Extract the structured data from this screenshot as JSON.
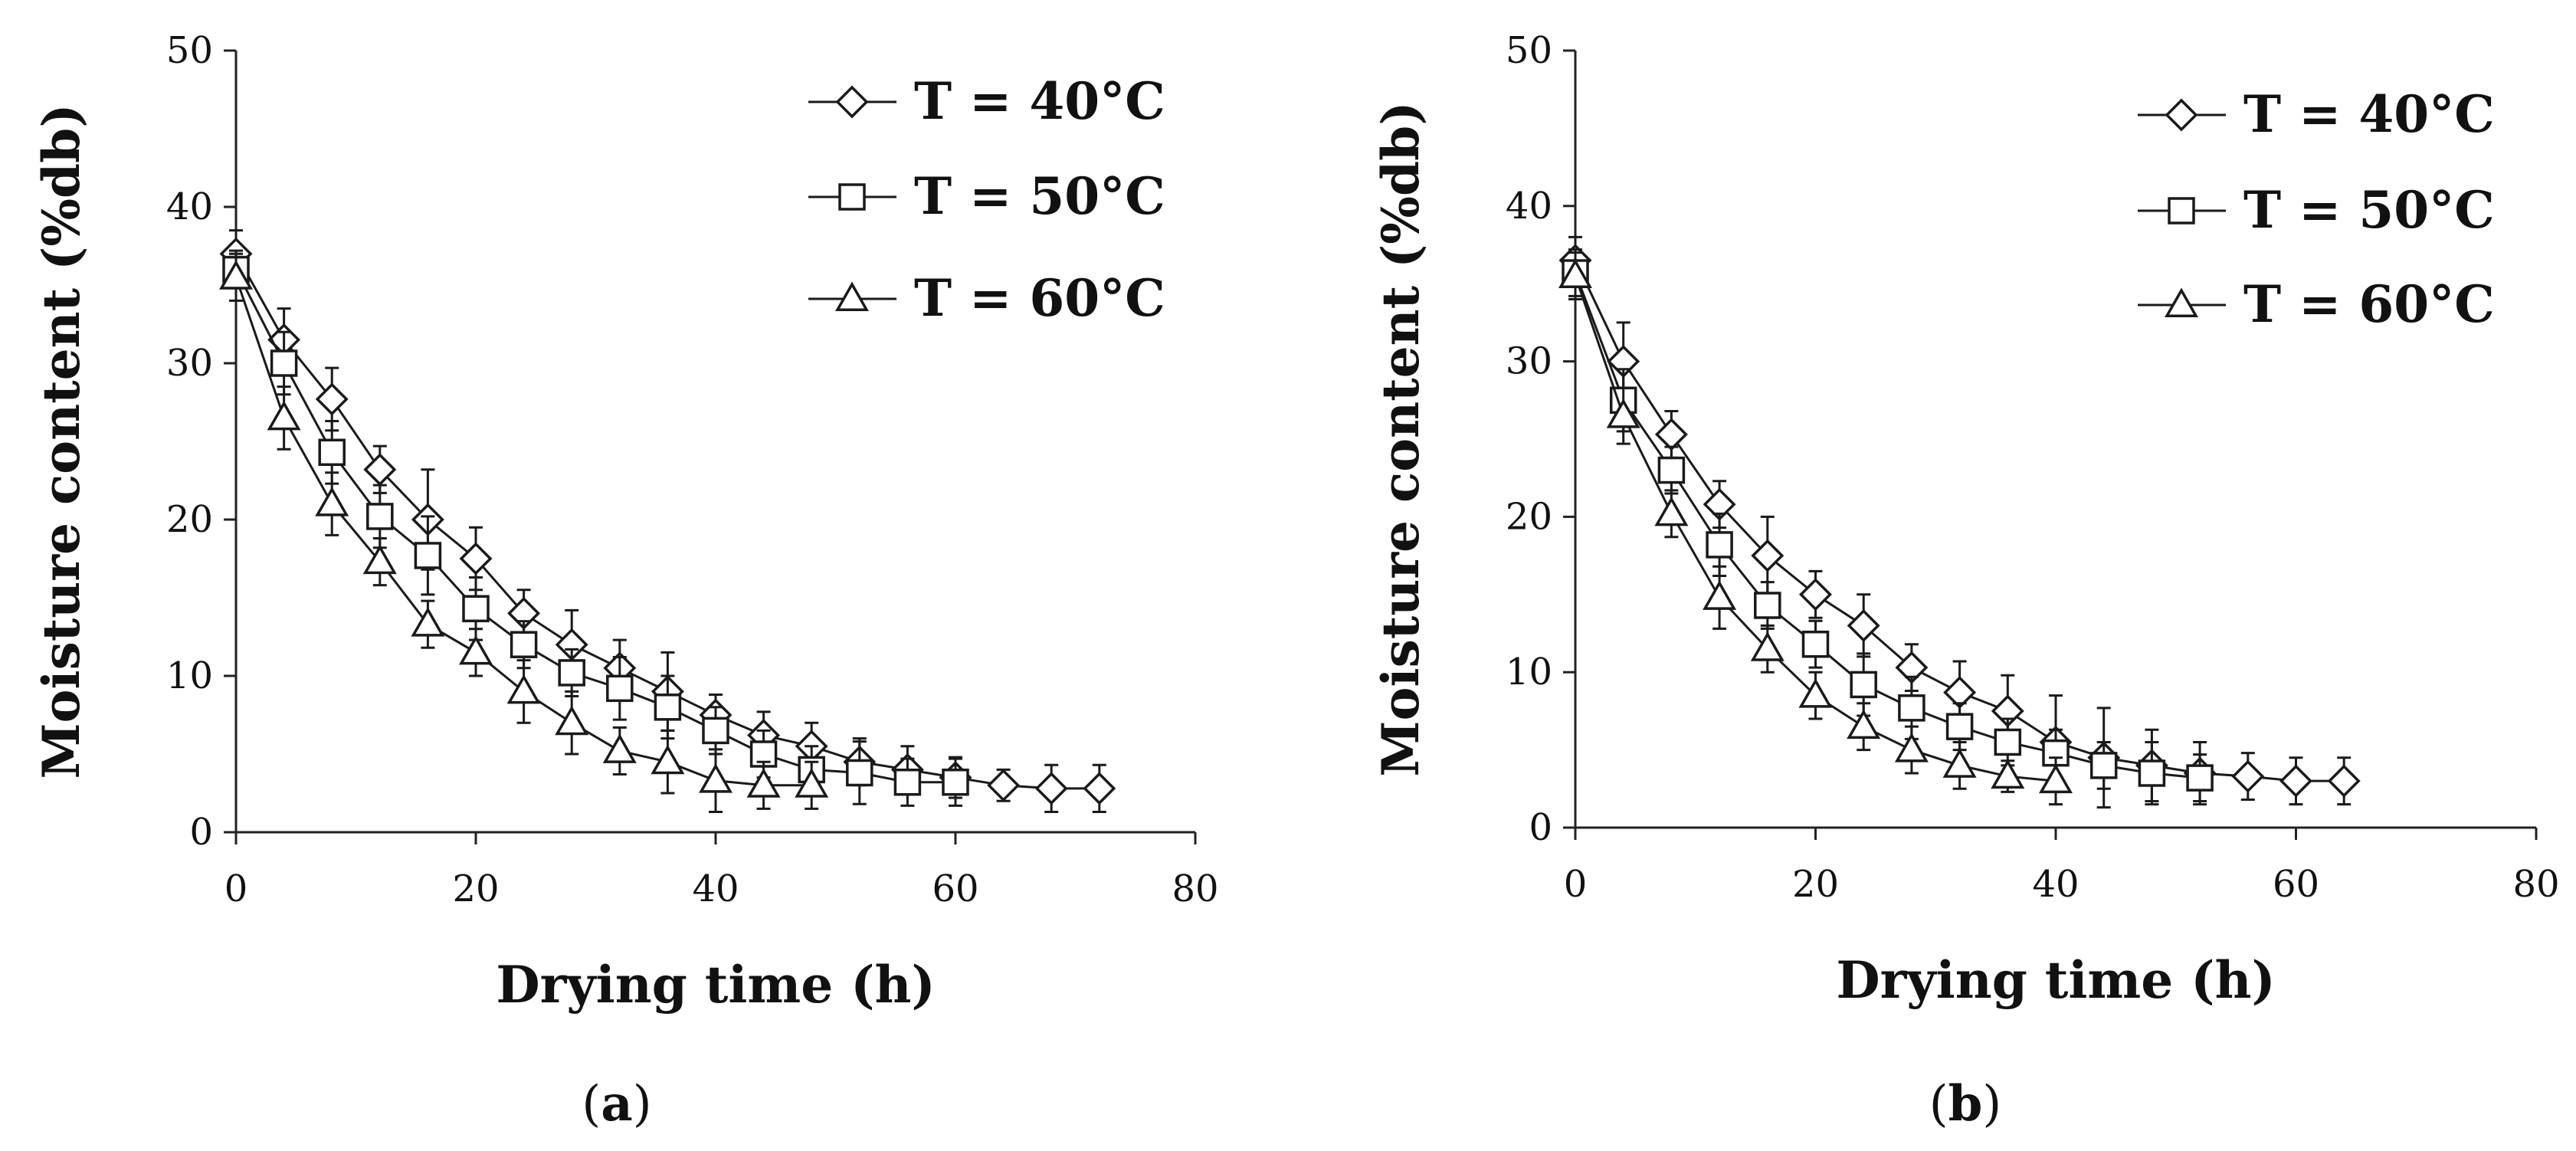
{
  "chart_data": [
    {
      "type": "line",
      "panel_label": "a",
      "xlabel": "Drying time (h)",
      "ylabel": "Moisture content (%db)",
      "xlim": [
        0,
        80
      ],
      "ylim": [
        0,
        50
      ],
      "xticks": [
        0,
        20,
        40,
        60,
        80
      ],
      "yticks": [
        0,
        10,
        20,
        30,
        40,
        50
      ],
      "legend_position": "top-right",
      "series": [
        {
          "name": "T = 40°C",
          "marker": "diamond",
          "x": [
            0,
            4,
            8,
            12,
            16,
            20,
            24,
            28,
            32,
            36,
            40,
            44,
            48,
            52,
            56,
            60,
            64,
            68,
            72
          ],
          "y": [
            37,
            31.5,
            27.7,
            23.2,
            20,
            17.5,
            14,
            12,
            10.5,
            9,
            7.5,
            6.2,
            5.5,
            4.5,
            4,
            3.5,
            3,
            2.8,
            2.8
          ],
          "err": [
            1.5,
            2,
            2,
            1.5,
            3.2,
            2,
            1.5,
            2.2,
            1.8,
            2.5,
            1.3,
            1.5,
            1.5,
            1.5,
            1.5,
            1.3,
            1,
            1.5,
            1.5
          ]
        },
        {
          "name": "T = 50°C",
          "marker": "square",
          "x": [
            0,
            4,
            8,
            12,
            16,
            20,
            24,
            28,
            32,
            36,
            40,
            44,
            48,
            52,
            56,
            60
          ],
          "y": [
            36,
            30,
            24.3,
            20.2,
            17.7,
            14.3,
            12,
            10.2,
            9.2,
            8,
            6.5,
            5,
            4,
            3.8,
            3.2,
            3.2
          ],
          "err": [
            1.2,
            2,
            2,
            2,
            2.5,
            2,
            1.5,
            1.5,
            2,
            2,
            1.5,
            1.5,
            1.5,
            2,
            1.5,
            1.5
          ]
        },
        {
          "name": "T = 60°C",
          "marker": "triangle",
          "x": [
            0,
            4,
            8,
            12,
            16,
            20,
            24,
            28,
            32,
            36,
            40,
            44,
            48
          ],
          "y": [
            35.5,
            26.5,
            21,
            17.3,
            13.3,
            11.5,
            9,
            7,
            5.2,
            4.5,
            3.3,
            3,
            3
          ],
          "err": [
            1.5,
            2,
            2,
            1.5,
            1.5,
            1.5,
            2,
            2,
            1.5,
            2,
            2,
            1.5,
            1.5
          ]
        }
      ]
    },
    {
      "type": "line",
      "panel_label": "b",
      "xlabel": "Drying time (h)",
      "ylabel": "Moisture content (%db)",
      "xlim": [
        0,
        80
      ],
      "ylim": [
        0,
        50
      ],
      "xticks": [
        0,
        20,
        40,
        60,
        80
      ],
      "yticks": [
        0,
        10,
        20,
        30,
        40,
        50
      ],
      "legend_position": "top-right",
      "series": [
        {
          "name": "T = 40°C",
          "marker": "diamond",
          "x": [
            0,
            4,
            8,
            12,
            16,
            20,
            24,
            28,
            32,
            36,
            40,
            44,
            48,
            52,
            56,
            60,
            64
          ],
          "y": [
            36.5,
            30,
            25.3,
            20.8,
            17.5,
            15,
            13,
            10.3,
            8.7,
            7.5,
            5.5,
            4.5,
            4,
            3.5,
            3.3,
            3,
            3
          ],
          "err": [
            1.5,
            2.5,
            1.5,
            1.5,
            2.5,
            1.5,
            2,
            1.5,
            2,
            2.3,
            3,
            3.2,
            2.3,
            2,
            1.5,
            1.5,
            1.5
          ]
        },
        {
          "name": "T = 50°C",
          "marker": "square",
          "x": [
            0,
            4,
            8,
            12,
            16,
            20,
            24,
            28,
            32,
            36,
            40,
            44,
            48,
            52
          ],
          "y": [
            35.7,
            27.5,
            23,
            18.2,
            14.3,
            11.8,
            9.2,
            7.7,
            6.5,
            5.5,
            4.8,
            4,
            3.5,
            3.2
          ],
          "err": [
            1.5,
            2,
            1.5,
            2,
            1.5,
            1.5,
            2,
            2,
            1.5,
            1.5,
            1.5,
            1.5,
            2,
            1.5
          ]
        },
        {
          "name": "T = 60°C",
          "marker": "triangle",
          "x": [
            0,
            4,
            8,
            12,
            16,
            20,
            24,
            28,
            32,
            36,
            40
          ],
          "y": [
            35.5,
            26.5,
            20.2,
            14.8,
            11.5,
            8.5,
            6.5,
            5,
            4,
            3.3,
            3
          ],
          "err": [
            1.5,
            1.8,
            1.5,
            2,
            1.5,
            1.5,
            1.5,
            1.5,
            1.5,
            1,
            1.5
          ]
        }
      ]
    }
  ]
}
